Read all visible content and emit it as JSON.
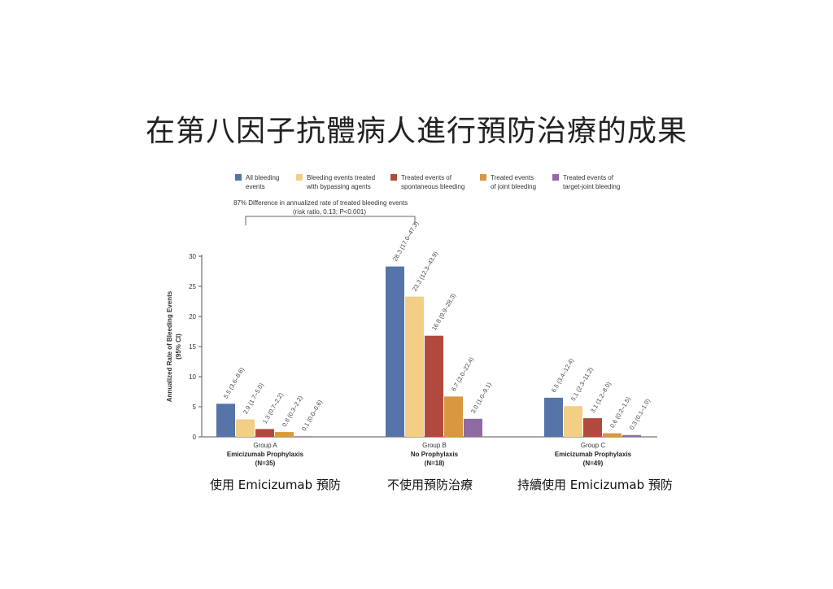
{
  "title": "在第八因子抗體病人進行預防治療的成果",
  "legend": [
    {
      "line1": "All bleeding",
      "line2": "events",
      "color": "#5674a8"
    },
    {
      "line1": "Bleeding events treated",
      "line2": "with bypassing agents",
      "color": "#f2cf85"
    },
    {
      "line1": "Treated events of",
      "line2": "spontaneous bleeding",
      "color": "#b04a3e"
    },
    {
      "line1": "Treated events",
      "line2": "of joint bleeding",
      "color": "#d9973f"
    },
    {
      "line1": "Treated events of",
      "line2": "target-joint bleeding",
      "color": "#8f6aa3"
    }
  ],
  "annotation": {
    "line1": "87% Difference in annualized rate of treated bleeding events",
    "line2": "(risk ratio, 0.13; P<0.001)"
  },
  "captions": [
    "使用 Emicizumab 預防",
    "不使用預防治療",
    "持續使用 Emicizumab 預防"
  ],
  "chart_data": {
    "type": "bar",
    "ylabel_line1": "Annualized Rate of Bleeding Events",
    "ylabel_line2": "(95% CI)",
    "ylim": [
      0,
      30
    ],
    "yticks": [
      0,
      5,
      10,
      15,
      20,
      25,
      30
    ],
    "groups": [
      {
        "label": "Group A",
        "sublabel": "Emicizumab Prophylaxis",
        "n": "(N=35)",
        "values": [
          5.5,
          2.9,
          1.3,
          0.8,
          0.1
        ],
        "labels": [
          "5.5 (3.6–8.6)",
          "2.9 (1.7–5.0)",
          "1.3 (0.7–2.2)",
          "0.8 (0.3–2.2)",
          "0.1 (0.0–0.6)"
        ]
      },
      {
        "label": "Group B",
        "sublabel": "No Prophylaxis",
        "n": "(N=18)",
        "values": [
          28.3,
          23.3,
          16.8,
          6.7,
          3.0
        ],
        "labels": [
          "28.3 (17.0–47.3)",
          "23.3 (12.3–43.9)",
          "16.8 (9.9–28.3)",
          "6.7 (2.0–22.4)",
          "3.0 (1.0–9.1)"
        ]
      },
      {
        "label": "Group C",
        "sublabel": "Emicizumab Prophylaxis",
        "n": "(N=49)",
        "values": [
          6.5,
          5.1,
          3.1,
          0.6,
          0.3
        ],
        "labels": [
          "6.5 (3.4–12.4)",
          "5.1 (2.3–11.2)",
          "3.1 (1.2–8.0)",
          "0.6 (0.2–1.5)",
          "0.3 (0.1–1.0)"
        ]
      }
    ]
  }
}
